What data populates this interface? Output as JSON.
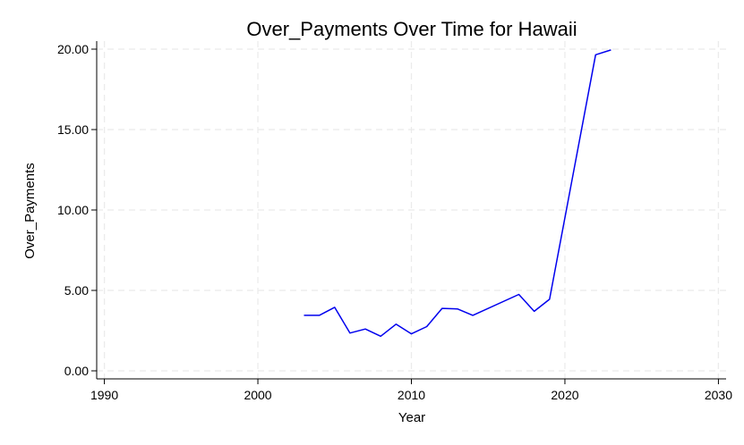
{
  "chart_data": {
    "type": "line",
    "title": "Over_Payments Over Time for Hawaii",
    "xlabel": "Year",
    "ylabel": "Over_Payments",
    "xlim": [
      1989.5,
      2030.5
    ],
    "ylim": [
      -0.5,
      20.5
    ],
    "xticks": [
      1990,
      2000,
      2010,
      2020,
      2030
    ],
    "xtick_labels": [
      "1990",
      "2000",
      "2010",
      "2020",
      "2030"
    ],
    "yticks": [
      0,
      5,
      10,
      15,
      20
    ],
    "ytick_labels": [
      "0.00",
      "5.00",
      "10.00",
      "15.00",
      "20.00"
    ],
    "grid": true,
    "series": [
      {
        "color": "#0000ee",
        "x": [
          2003,
          2004,
          2005,
          2006,
          2007,
          2008,
          2009,
          2010,
          2011,
          2012,
          2013,
          2014,
          2017,
          2018,
          2019,
          2022,
          2023
        ],
        "y": [
          3.45,
          3.45,
          3.95,
          2.35,
          2.6,
          2.15,
          2.9,
          2.3,
          2.75,
          3.88,
          3.85,
          3.45,
          4.75,
          3.7,
          4.45,
          19.65,
          19.95
        ]
      }
    ]
  }
}
